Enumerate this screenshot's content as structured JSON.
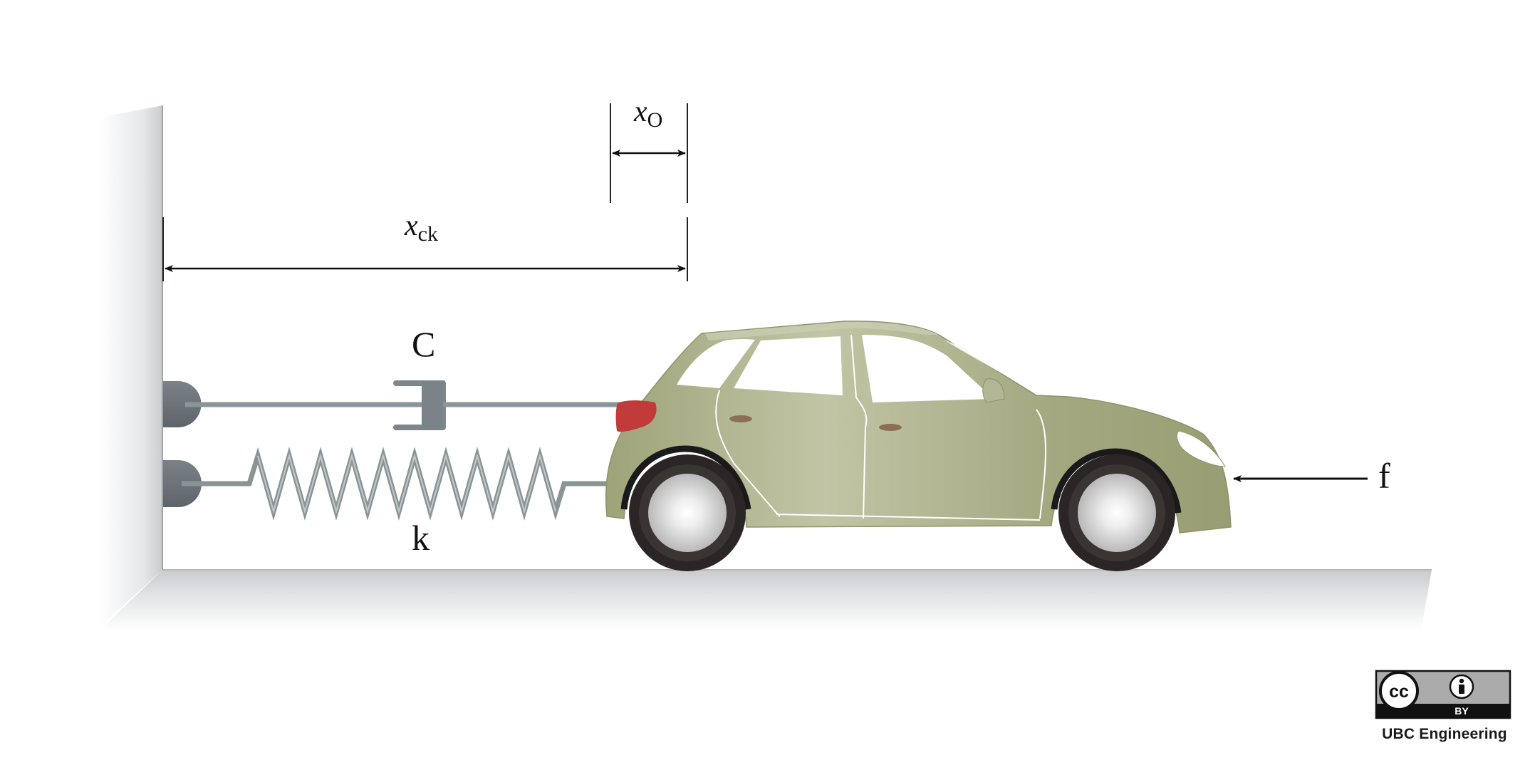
{
  "labels": {
    "x_o_base": "x",
    "x_o_sub": "O",
    "x_ck_base": "x",
    "x_ck_sub": "ck",
    "damper": "C",
    "spring": "k",
    "force": "f"
  },
  "license": {
    "cc_glyph": "cc",
    "by_text": "BY",
    "credit": "UBC Engineering"
  },
  "colors": {
    "car_body": "#a3a77f",
    "tail_light": "#c23b3b",
    "mount": "#6f767b",
    "rod": "#8b9598"
  }
}
